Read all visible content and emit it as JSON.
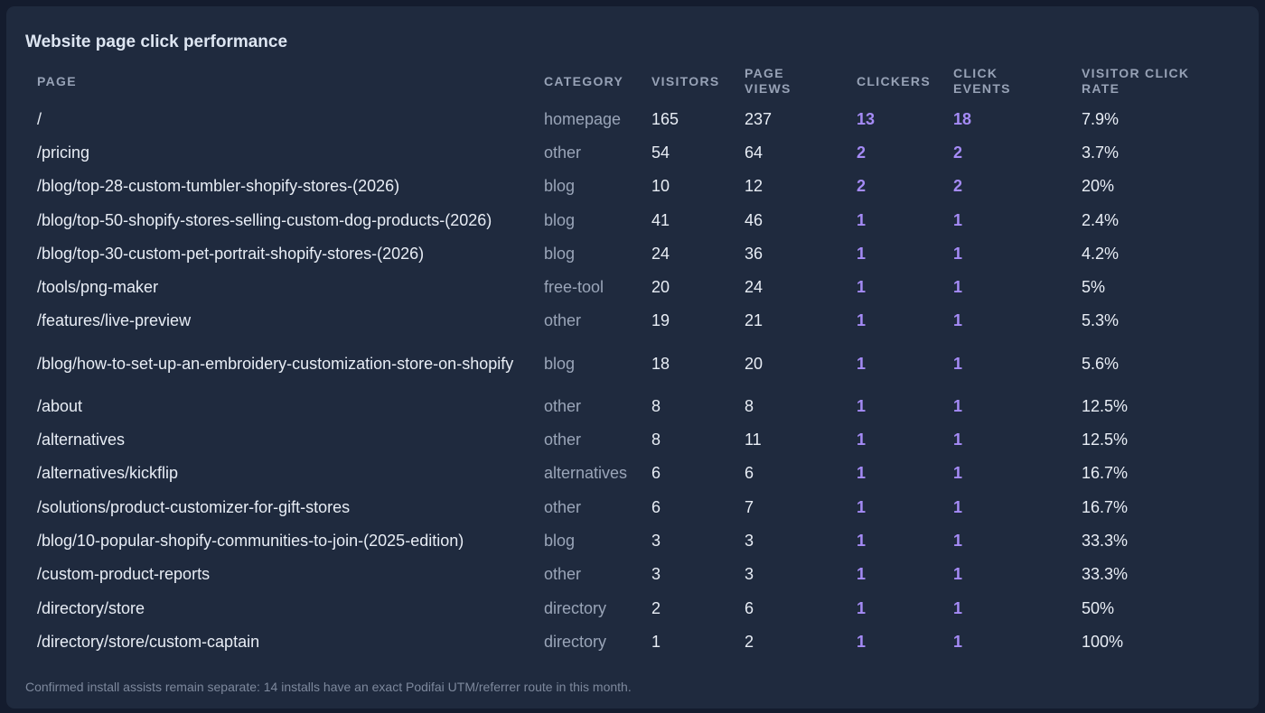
{
  "title": "Website page click performance",
  "columns": [
    "Page",
    "Category",
    "Visitors",
    "Page views",
    "Clickers",
    "Click events",
    "Visitor click rate"
  ],
  "rows": [
    {
      "page": "/",
      "category": "homepage",
      "visitors": "165",
      "page_views": "237",
      "clickers": "13",
      "click_events": "18",
      "rate": "7.9%"
    },
    {
      "page": "/pricing",
      "category": "other",
      "visitors": "54",
      "page_views": "64",
      "clickers": "2",
      "click_events": "2",
      "rate": "3.7%"
    },
    {
      "page": "/blog/top-28-custom-tumbler-shopify-stores-(2026)",
      "category": "blog",
      "visitors": "10",
      "page_views": "12",
      "clickers": "2",
      "click_events": "2",
      "rate": "20%"
    },
    {
      "page": "/blog/top-50-shopify-stores-selling-custom-dog-products-(2026)",
      "category": "blog",
      "visitors": "41",
      "page_views": "46",
      "clickers": "1",
      "click_events": "1",
      "rate": "2.4%"
    },
    {
      "page": "/blog/top-30-custom-pet-portrait-shopify-stores-(2026)",
      "category": "blog",
      "visitors": "24",
      "page_views": "36",
      "clickers": "1",
      "click_events": "1",
      "rate": "4.2%"
    },
    {
      "page": "/tools/png-maker",
      "category": "free-tool",
      "visitors": "20",
      "page_views": "24",
      "clickers": "1",
      "click_events": "1",
      "rate": "5%"
    },
    {
      "page": "/features/live-preview",
      "category": "other",
      "visitors": "19",
      "page_views": "21",
      "clickers": "1",
      "click_events": "1",
      "rate": "5.3%"
    },
    {
      "page": "/blog/how-to-set-up-an-embroidery-customization-store-on-shopify",
      "category": "blog",
      "visitors": "18",
      "page_views": "20",
      "clickers": "1",
      "click_events": "1",
      "rate": "5.6%"
    },
    {
      "page": "/about",
      "category": "other",
      "visitors": "8",
      "page_views": "8",
      "clickers": "1",
      "click_events": "1",
      "rate": "12.5%"
    },
    {
      "page": "/alternatives",
      "category": "other",
      "visitors": "8",
      "page_views": "11",
      "clickers": "1",
      "click_events": "1",
      "rate": "12.5%"
    },
    {
      "page": "/alternatives/kickflip",
      "category": "alternatives",
      "visitors": "6",
      "page_views": "6",
      "clickers": "1",
      "click_events": "1",
      "rate": "16.7%"
    },
    {
      "page": "/solutions/product-customizer-for-gift-stores",
      "category": "other",
      "visitors": "6",
      "page_views": "7",
      "clickers": "1",
      "click_events": "1",
      "rate": "16.7%"
    },
    {
      "page": "/blog/10-popular-shopify-communities-to-join-(2025-edition)",
      "category": "blog",
      "visitors": "3",
      "page_views": "3",
      "clickers": "1",
      "click_events": "1",
      "rate": "33.3%"
    },
    {
      "page": "/custom-product-reports",
      "category": "other",
      "visitors": "3",
      "page_views": "3",
      "clickers": "1",
      "click_events": "1",
      "rate": "33.3%"
    },
    {
      "page": "/directory/store",
      "category": "directory",
      "visitors": "2",
      "page_views": "6",
      "clickers": "1",
      "click_events": "1",
      "rate": "50%"
    },
    {
      "page": "/directory/store/custom-captain",
      "category": "directory",
      "visitors": "1",
      "page_views": "2",
      "clickers": "1",
      "click_events": "1",
      "rate": "100%"
    }
  ],
  "footnote": "Confirmed install assists remain separate: 14 installs have an exact Podifai UTM/referrer route in this month.",
  "colors": {
    "background": "#141c2e",
    "card": "#1f2a3e",
    "accent": "#a58bf6",
    "text": "#e8edf5",
    "muted": "#9aa5b8"
  }
}
